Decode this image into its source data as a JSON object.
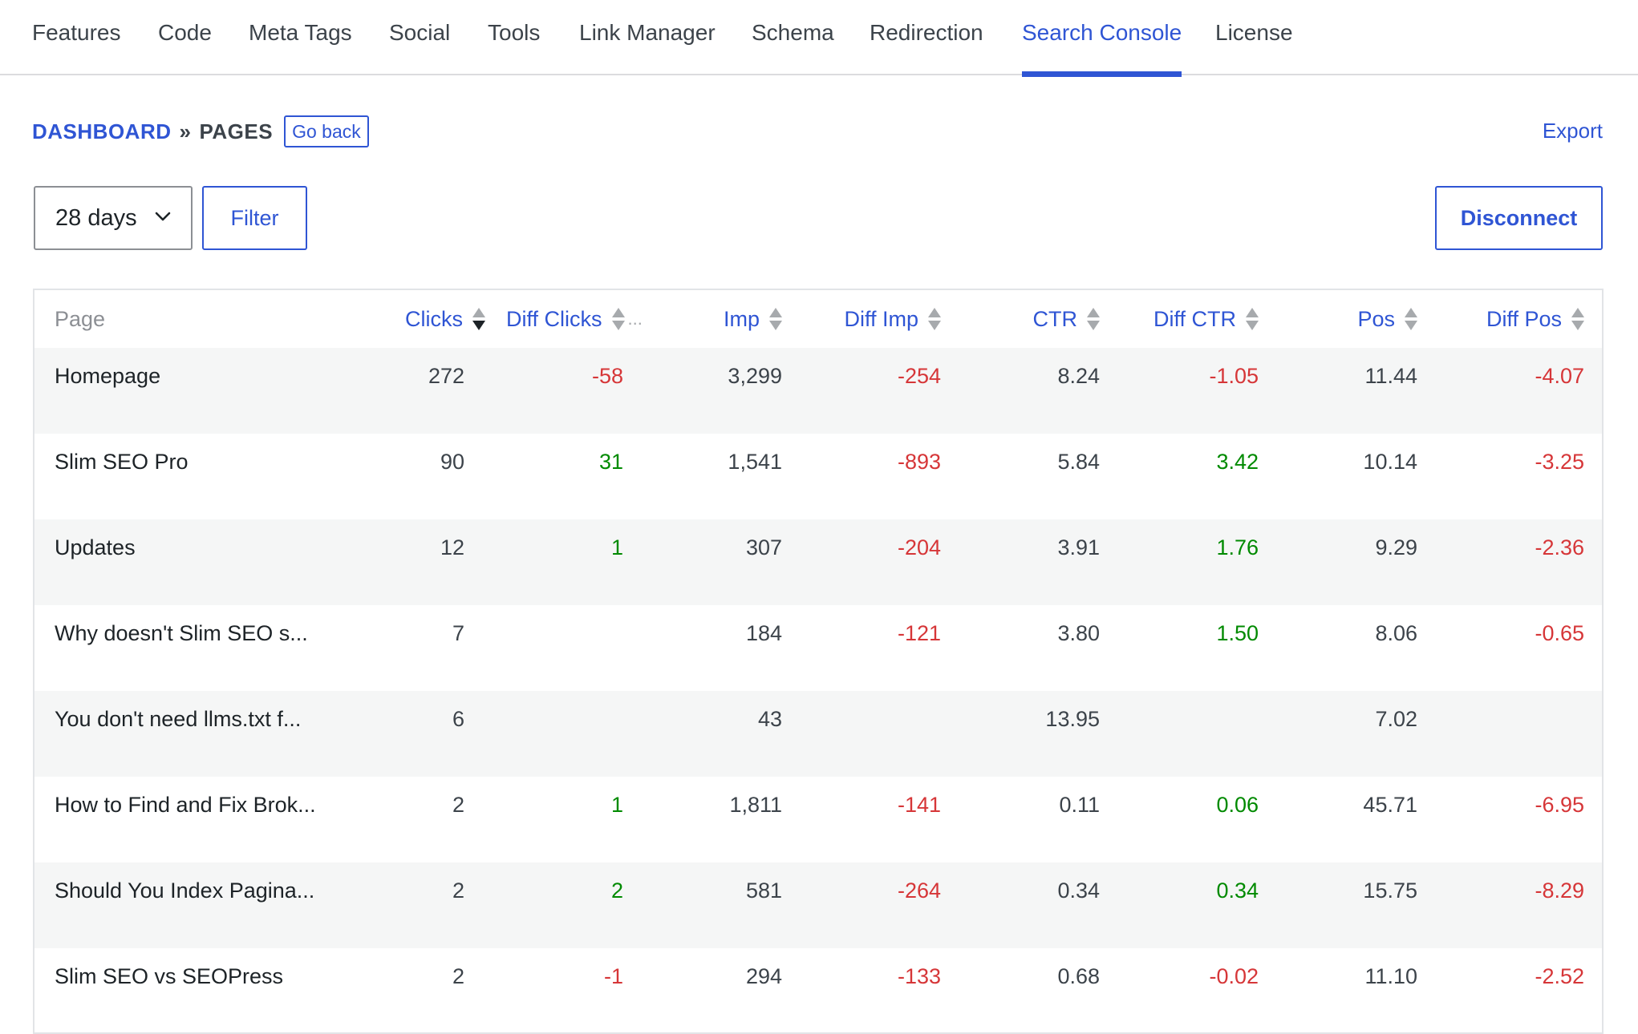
{
  "nav": {
    "tabs": [
      {
        "label": "Features"
      },
      {
        "label": "Code"
      },
      {
        "label": "Meta Tags"
      },
      {
        "label": "Social"
      },
      {
        "label": "Tools"
      },
      {
        "label": "Link Manager"
      },
      {
        "label": "Schema"
      },
      {
        "label": "Redirection"
      },
      {
        "label": "Search Console",
        "active": true
      },
      {
        "label": "License"
      }
    ]
  },
  "breadcrumb": {
    "root": "DASHBOARD",
    "separator": "»",
    "current": "PAGES",
    "go_back": "Go back"
  },
  "toolbar": {
    "export": "Export",
    "range_value": "28 days",
    "filter": "Filter",
    "disconnect": "Disconnect"
  },
  "table": {
    "columns": {
      "page": "Page",
      "clicks": "Clicks",
      "diff_clicks": "Diff Clicks",
      "diff_clicks_more": "...",
      "imp": "Imp",
      "diff_imp": "Diff Imp",
      "ctr": "CTR",
      "diff_ctr": "Diff CTR",
      "pos": "Pos",
      "diff_pos": "Diff Pos"
    },
    "sorted_by": "clicks",
    "sort_direction": "desc",
    "rows": [
      {
        "page": "Homepage",
        "clicks": "272",
        "diff_clicks": "-58",
        "imp": "3,299",
        "diff_imp": "-254",
        "ctr": "8.24",
        "diff_ctr": "-1.05",
        "pos": "11.44",
        "diff_pos": "-4.07"
      },
      {
        "page": "Slim SEO Pro",
        "clicks": "90",
        "diff_clicks": "31",
        "imp": "1,541",
        "diff_imp": "-893",
        "ctr": "5.84",
        "diff_ctr": "3.42",
        "pos": "10.14",
        "diff_pos": "-3.25"
      },
      {
        "page": "Updates",
        "clicks": "12",
        "diff_clicks": "1",
        "imp": "307",
        "diff_imp": "-204",
        "ctr": "3.91",
        "diff_ctr": "1.76",
        "pos": "9.29",
        "diff_pos": "-2.36"
      },
      {
        "page": "Why doesn't Slim SEO s...",
        "clicks": "7",
        "diff_clicks": "",
        "imp": "184",
        "diff_imp": "-121",
        "ctr": "3.80",
        "diff_ctr": "1.50",
        "pos": "8.06",
        "diff_pos": "-0.65"
      },
      {
        "page": "You don't need llms.txt f...",
        "clicks": "6",
        "diff_clicks": "",
        "imp": "43",
        "diff_imp": "",
        "ctr": "13.95",
        "diff_ctr": "",
        "pos": "7.02",
        "diff_pos": ""
      },
      {
        "page": "How to Find and Fix Brok...",
        "clicks": "2",
        "diff_clicks": "1",
        "imp": "1,811",
        "diff_imp": "-141",
        "ctr": "0.11",
        "diff_ctr": "0.06",
        "pos": "45.71",
        "diff_pos": "-6.95"
      },
      {
        "page": "Should You Index Pagina...",
        "clicks": "2",
        "diff_clicks": "2",
        "imp": "581",
        "diff_imp": "-264",
        "ctr": "0.34",
        "diff_ctr": "0.34",
        "pos": "15.75",
        "diff_pos": "-8.29"
      },
      {
        "page": "Slim SEO vs SEOPress",
        "clicks": "2",
        "diff_clicks": "-1",
        "imp": "294",
        "diff_imp": "-133",
        "ctr": "0.68",
        "diff_ctr": "-0.02",
        "pos": "11.10",
        "diff_pos": "-2.52"
      }
    ]
  },
  "colors": {
    "accent": "#2f55d4",
    "positive": "#008a00",
    "negative": "#d63638",
    "row_stripe": "#f5f6f6"
  }
}
